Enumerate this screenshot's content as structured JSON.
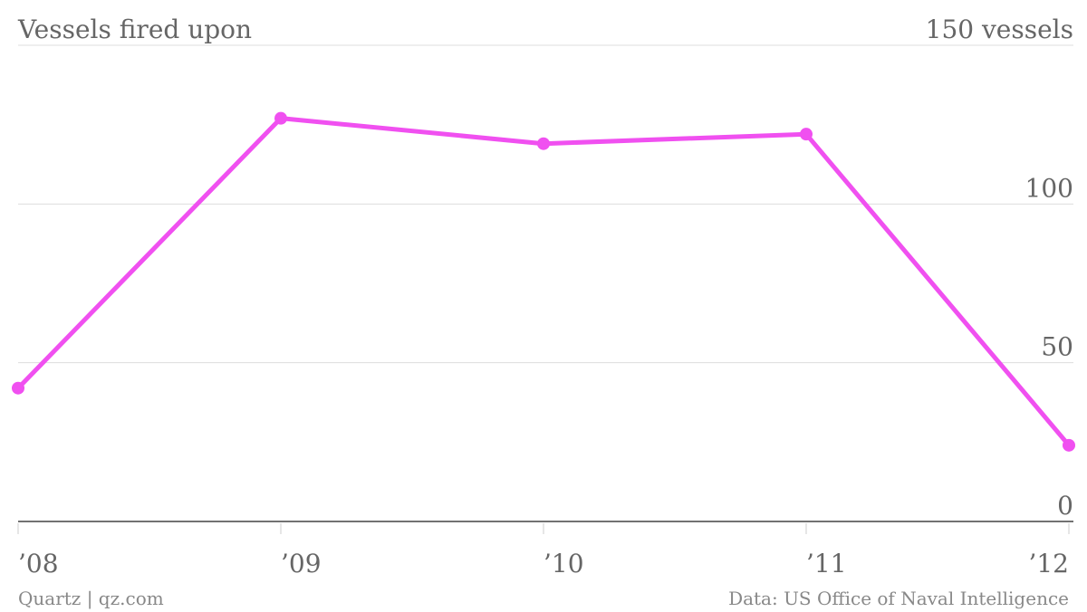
{
  "chart_data": {
    "type": "line",
    "title": "Vessels fired upon",
    "categories": [
      "’08",
      "’09",
      "’10",
      "’11",
      "’12"
    ],
    "values": [
      42,
      127,
      119,
      122,
      24
    ],
    "color": "#f050f0",
    "ylim": [
      0,
      150
    ],
    "yticks": [
      0,
      50,
      100,
      {
        "value": 150,
        "label": "150 vessels"
      }
    ],
    "grid": true,
    "credit": "Quartz | qz.com",
    "source": "Data: US Office of Naval Intelligence"
  }
}
